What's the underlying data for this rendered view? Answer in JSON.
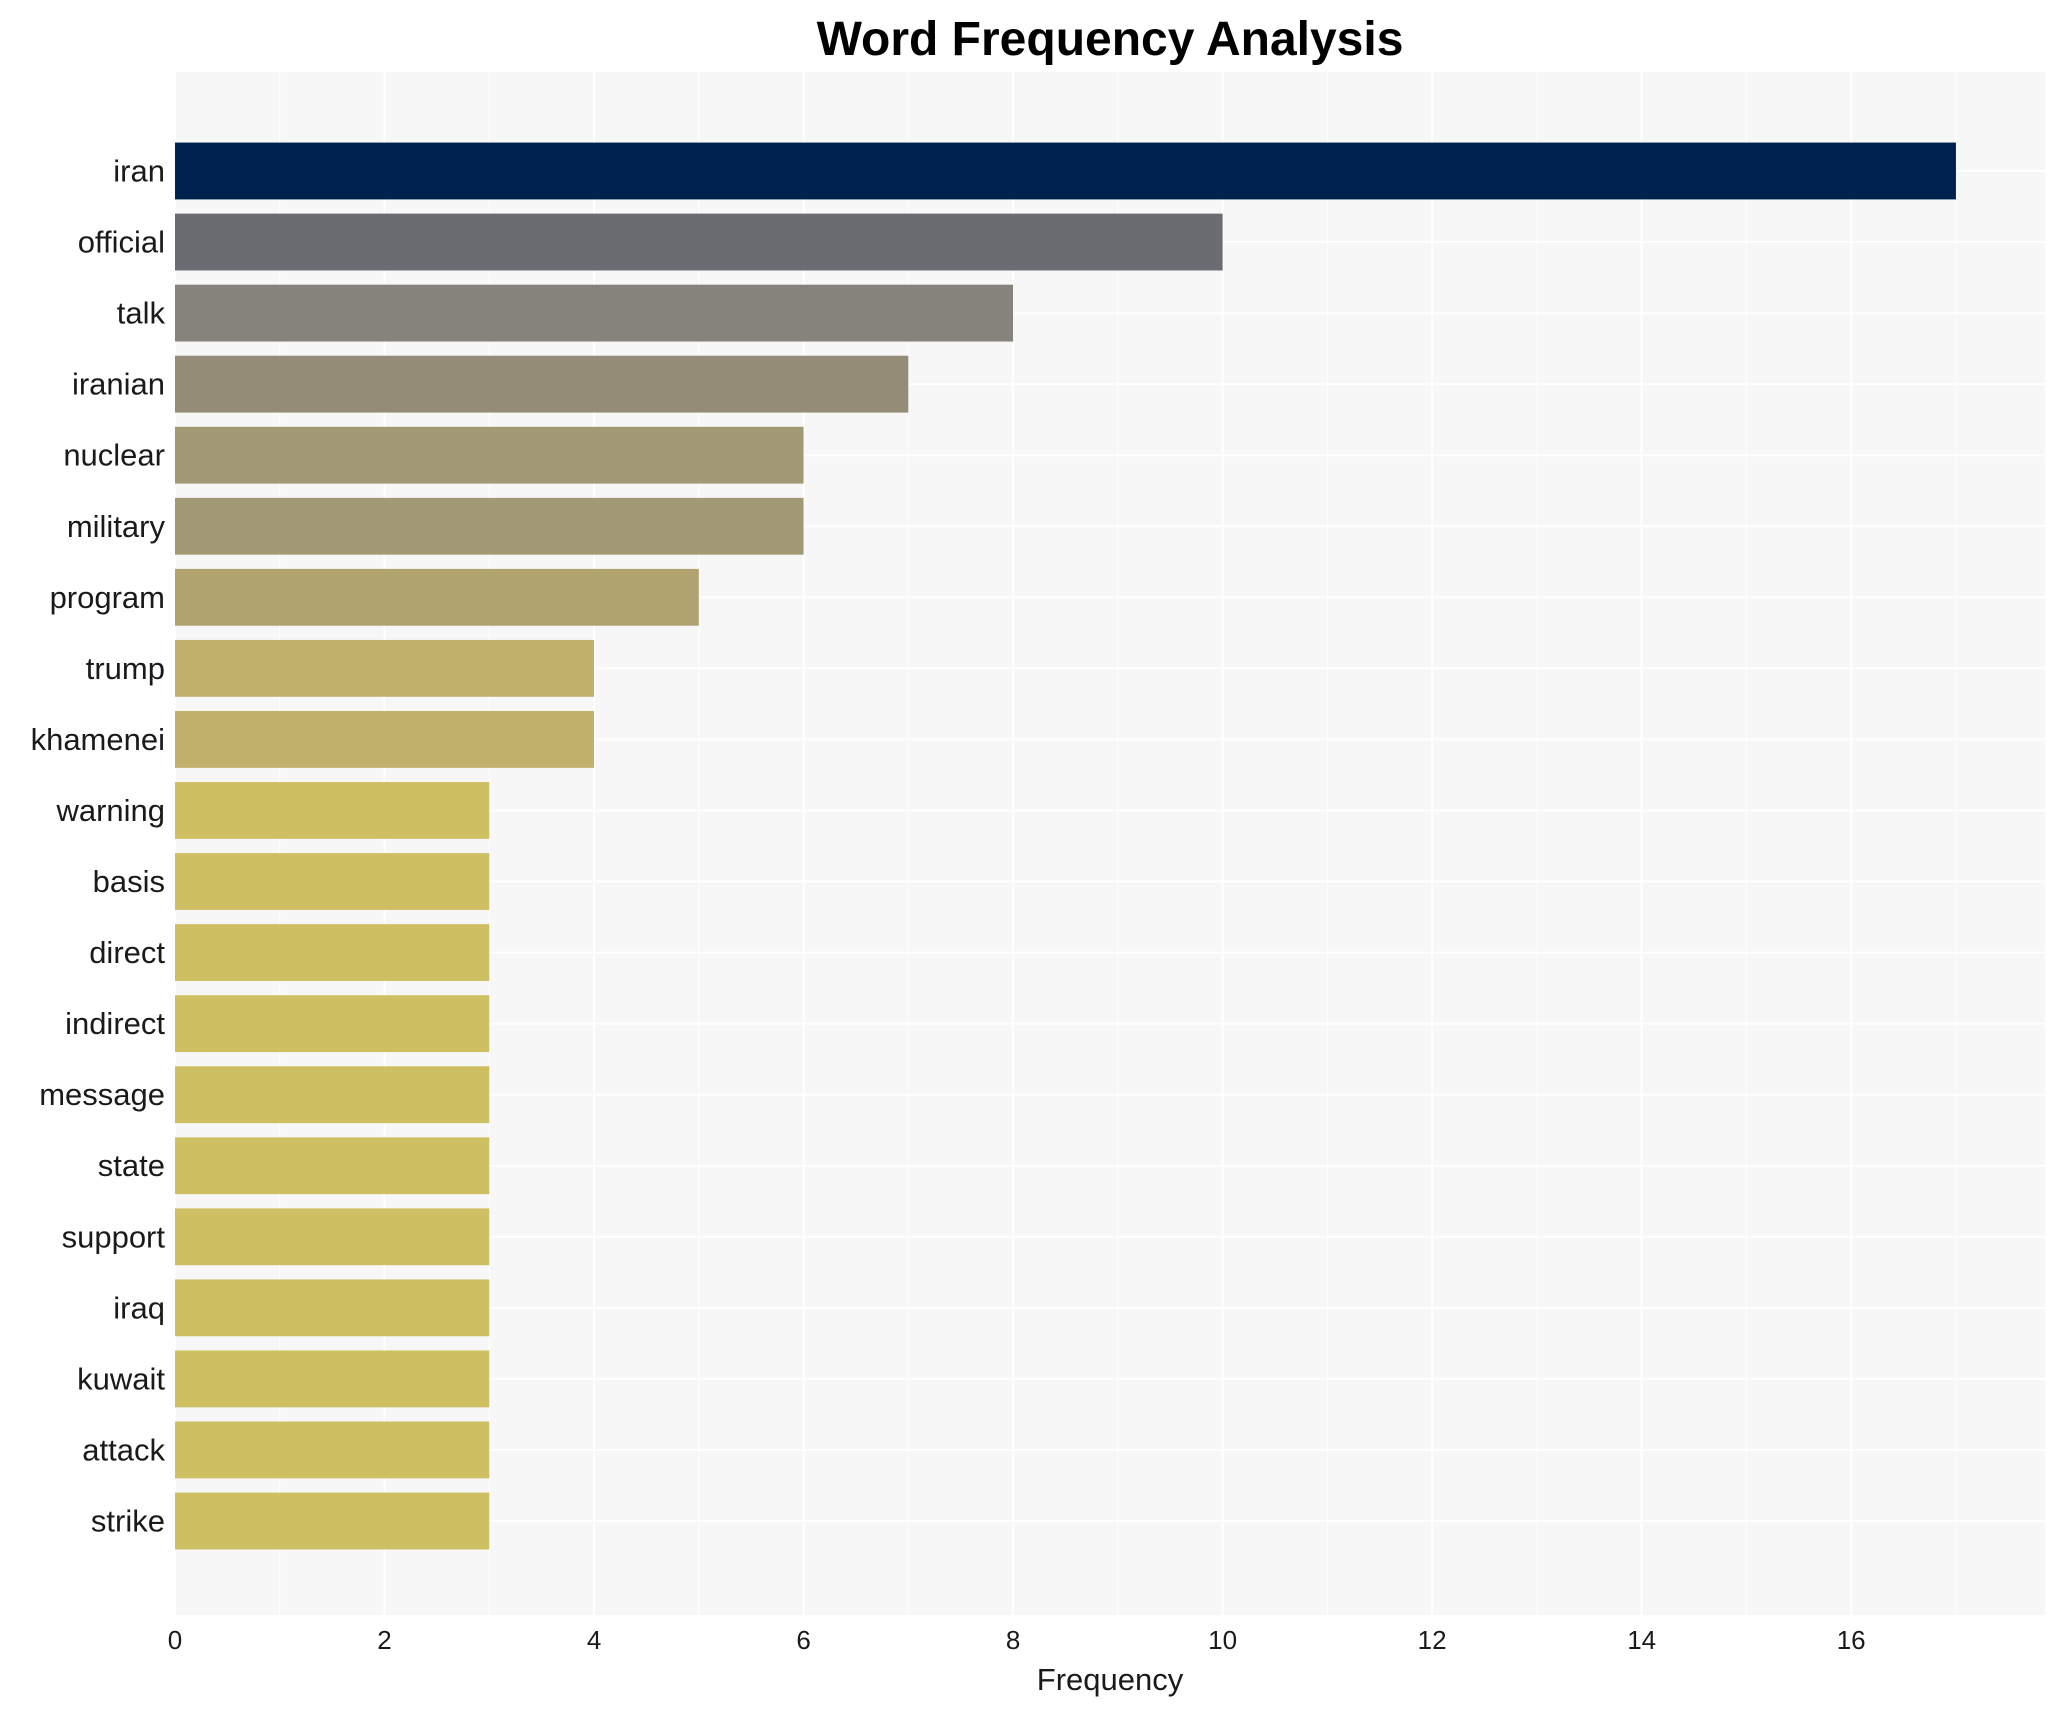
{
  "chart_data": {
    "type": "bar",
    "orientation": "horizontal",
    "title": "Word Frequency Analysis",
    "xlabel": "Frequency",
    "ylabel": "",
    "categories": [
      "iran",
      "official",
      "talk",
      "iranian",
      "nuclear",
      "military",
      "program",
      "trump",
      "khamenei",
      "warning",
      "basis",
      "direct",
      "indirect",
      "message",
      "state",
      "support",
      "iraq",
      "kuwait",
      "attack",
      "strike"
    ],
    "values": [
      17,
      10,
      8,
      7,
      6,
      6,
      5,
      4,
      4,
      3,
      3,
      3,
      3,
      3,
      3,
      3,
      3,
      3,
      3,
      3
    ],
    "bar_colors": [
      "#00224e",
      "#6a6c71",
      "#85837a",
      "#948c77",
      "#a29a75",
      "#a29a75",
      "#b0a370",
      "#c0b16d",
      "#c0b16d",
      "#cfbf63",
      "#cfbf63",
      "#cfbf63",
      "#cfbf63",
      "#cfbf63",
      "#cfbf63",
      "#cfbf63",
      "#cfbf63",
      "#cfbf63",
      "#cfbf63",
      "#cfbf63"
    ],
    "xticks": [
      0,
      2,
      4,
      6,
      8,
      10,
      12,
      14,
      16
    ],
    "xlim": [
      0,
      17.85
    ],
    "grid": true,
    "legend": "none",
    "plot_background": "#f7f7f7",
    "grid_color": "#ffffff"
  }
}
